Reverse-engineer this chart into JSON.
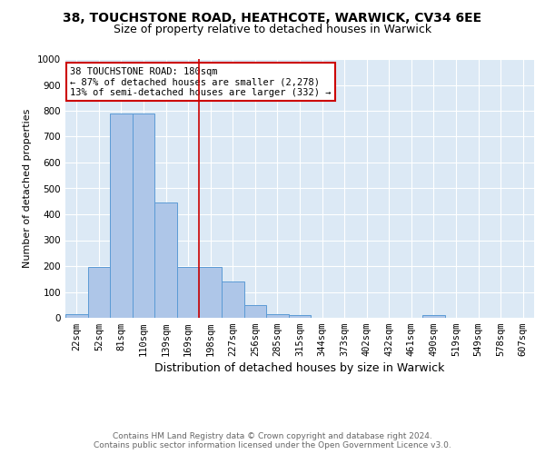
{
  "title1": "38, TOUCHSTONE ROAD, HEATHCOTE, WARWICK, CV34 6EE",
  "title2": "Size of property relative to detached houses in Warwick",
  "xlabel": "Distribution of detached houses by size in Warwick",
  "ylabel": "Number of detached properties",
  "categories": [
    "22sqm",
    "52sqm",
    "81sqm",
    "110sqm",
    "139sqm",
    "169sqm",
    "198sqm",
    "227sqm",
    "256sqm",
    "285sqm",
    "315sqm",
    "344sqm",
    "373sqm",
    "402sqm",
    "432sqm",
    "461sqm",
    "490sqm",
    "519sqm",
    "549sqm",
    "578sqm",
    "607sqm"
  ],
  "values": [
    15,
    195,
    790,
    790,
    445,
    195,
    195,
    140,
    50,
    15,
    10,
    0,
    0,
    0,
    0,
    0,
    10,
    0,
    0,
    0,
    0
  ],
  "bar_color": "#aec6e8",
  "bar_edgecolor": "#5b9bd5",
  "vline_color": "#cc0000",
  "vline_x_index": 6,
  "annotation_text": "38 TOUCHSTONE ROAD: 180sqm\n← 87% of detached houses are smaller (2,278)\n13% of semi-detached houses are larger (332) →",
  "annotation_box_color": "#ffffff",
  "annotation_box_edgecolor": "#cc0000",
  "ylim": [
    0,
    1000
  ],
  "yticks": [
    0,
    100,
    200,
    300,
    400,
    500,
    600,
    700,
    800,
    900,
    1000
  ],
  "background_color": "#dce9f5",
  "footer_text": "Contains HM Land Registry data © Crown copyright and database right 2024.\nContains public sector information licensed under the Open Government Licence v3.0.",
  "title1_fontsize": 10,
  "title2_fontsize": 9,
  "xlabel_fontsize": 9,
  "ylabel_fontsize": 8,
  "tick_fontsize": 7.5,
  "footer_fontsize": 6.5
}
